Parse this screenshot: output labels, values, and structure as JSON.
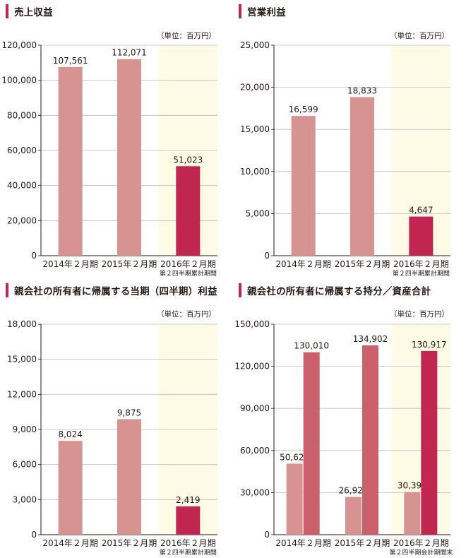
{
  "colors": {
    "accent": "#c0264f",
    "bar_prior": "#d69391",
    "bar_current": "#c0264f",
    "bar_total": "#c9606b",
    "highlight_bg": "#fdfbe6",
    "grid": "#bdbdbd",
    "axis": "#231815"
  },
  "chart_data": [
    {
      "type": "bar",
      "title": "売上収益",
      "unit": "（単位：百万円）",
      "categories": [
        "2014年２月期",
        "2015年２月期",
        "2016年２月期"
      ],
      "category_sublabels": [
        "",
        "",
        "第２四半期累計期間"
      ],
      "series": [
        {
          "values": [
            107561,
            112071,
            51023
          ]
        }
      ],
      "value_labels": [
        "107,561",
        "112,071",
        "51,023"
      ],
      "yticks": [
        0,
        20000,
        40000,
        60000,
        80000,
        100000,
        120000
      ],
      "ytick_labels": [
        "0",
        "20,000",
        "40,000",
        "60,000",
        "80,000",
        "100,000",
        "120,000"
      ],
      "ylim": [
        0,
        120000
      ],
      "highlight_last_category": true,
      "grid": true
    },
    {
      "type": "bar",
      "title": "営業利益",
      "unit": "（単位：百万円）",
      "categories": [
        "2014年２月期",
        "2015年２月期",
        "2016年２月期"
      ],
      "category_sublabels": [
        "",
        "",
        "第２四半期累計期間"
      ],
      "series": [
        {
          "values": [
            16599,
            18833,
            4647
          ]
        }
      ],
      "value_labels": [
        "16,599",
        "18,833",
        "4,647"
      ],
      "yticks": [
        0,
        5000,
        10000,
        15000,
        20000,
        25000
      ],
      "ytick_labels": [
        "0",
        "5,000",
        "10,000",
        "15,000",
        "20,000",
        "25,000"
      ],
      "ylim": [
        0,
        25000
      ],
      "highlight_last_category": true,
      "grid": true
    },
    {
      "type": "bar",
      "title": "親会社の所有者に帰属する当期（四半期）利益",
      "unit": "（単位：百万円）",
      "categories": [
        "2014年２月期",
        "2015年２月期",
        "2016年２月期"
      ],
      "category_sublabels": [
        "",
        "",
        "第２四半期累計期間"
      ],
      "series": [
        {
          "values": [
            8024,
            9875,
            2419
          ]
        }
      ],
      "value_labels": [
        "8,024",
        "9,875",
        "2,419"
      ],
      "yticks": [
        0,
        3000,
        6000,
        9000,
        12000,
        15000,
        18000
      ],
      "ytick_labels": [
        "0",
        "3,000",
        "6,000",
        "9,000",
        "12,000",
        "15,000",
        "18,000"
      ],
      "ylim": [
        0,
        18000
      ],
      "highlight_last_category": true,
      "grid": true
    },
    {
      "type": "bar",
      "title": "親会社の所有者に帰属する持分／資産合計",
      "unit": "（単位：百万円）",
      "categories": [
        "2014年２月期",
        "2015年２月期",
        "2016年２月期"
      ],
      "category_sublabels": [
        "",
        "",
        "第２四半期会計期間末"
      ],
      "series": [
        {
          "values": [
            50621,
            26924,
            30393
          ]
        },
        {
          "values": [
            130010,
            134902,
            130917
          ]
        }
      ],
      "value_labels": [
        [
          "50,621",
          "26,924",
          "30,393"
        ],
        [
          "130,010",
          "134,902",
          "130,917"
        ]
      ],
      "yticks": [
        0,
        30000,
        60000,
        90000,
        120000,
        150000
      ],
      "ytick_labels": [
        "0",
        "30,000",
        "60,000",
        "90,000",
        "120,000",
        "150,000"
      ],
      "ylim": [
        0,
        150000
      ],
      "highlight_last_category": true,
      "grid": true
    }
  ]
}
